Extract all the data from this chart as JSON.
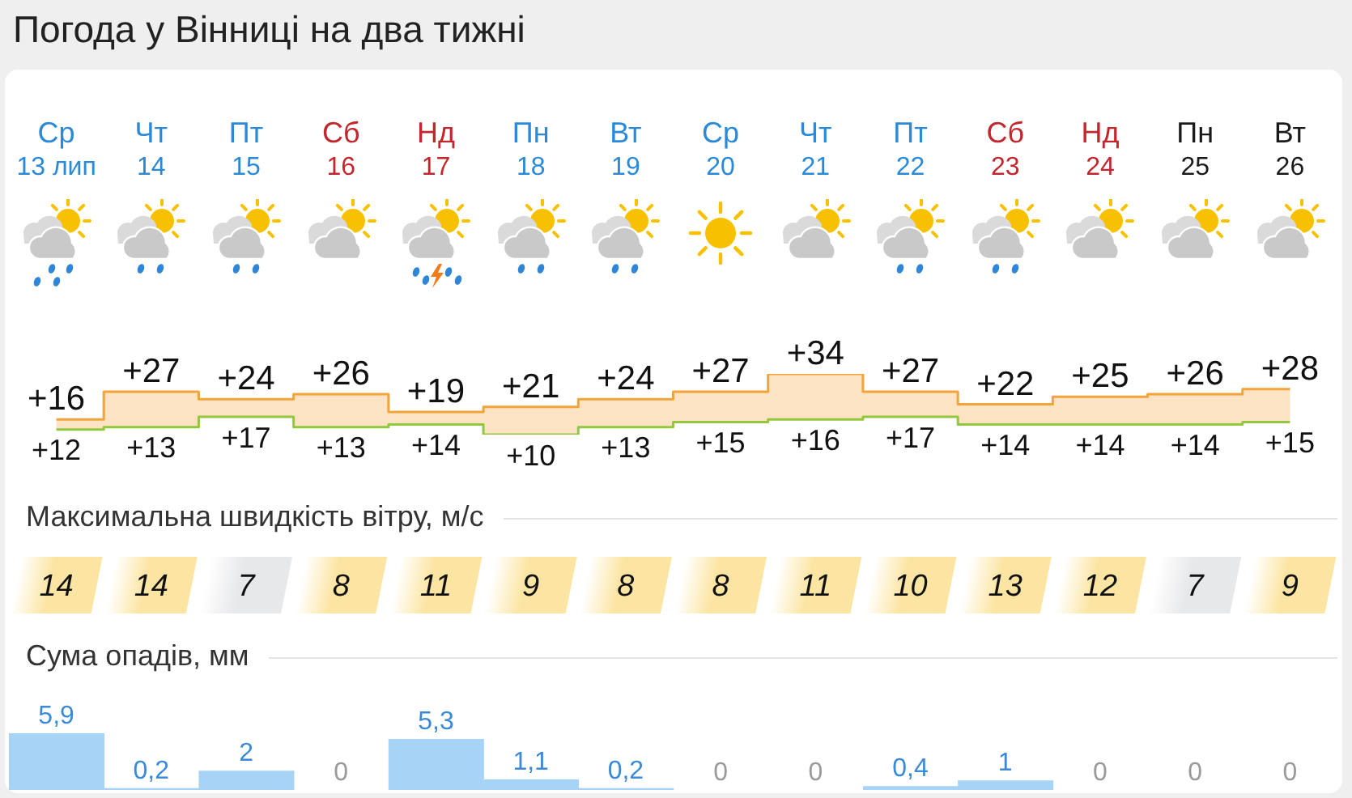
{
  "chart_data": [
    {
      "type": "step",
      "title": "Погода у Вінниці на два тижні",
      "categories": [
        "Ср\n13 лип",
        "Чт\n14",
        "Пт\n15",
        "Сб\n16",
        "Нд\n17",
        "Пн\n18",
        "Вт\n19",
        "Ср\n20",
        "Чт\n21",
        "Пт\n22",
        "Сб\n23",
        "Нд\n24",
        "Пн\n25",
        "Вт\n26"
      ],
      "series": [
        {
          "color": "#f2a33a",
          "values": [
            16,
            27,
            24,
            26,
            19,
            21,
            24,
            27,
            34,
            27,
            22,
            25,
            26,
            28
          ],
          "value_labels": [
            "+16",
            "+27",
            "+24",
            "+26",
            "+19",
            "+21",
            "+24",
            "+27",
            "+34",
            "+27",
            "+22",
            "+25",
            "+26",
            "+28"
          ],
          "lower": [
            12,
            13,
            17,
            13,
            14,
            10,
            13,
            15,
            16,
            17,
            14,
            14,
            14,
            15
          ],
          "upper": [
            16,
            27,
            24,
            26,
            19,
            21,
            24,
            27,
            34,
            27,
            22,
            25,
            26,
            28
          ]
        },
        {
          "color": "#93c83e",
          "values": [
            12,
            13,
            17,
            13,
            14,
            10,
            13,
            15,
            16,
            17,
            14,
            14,
            14,
            15
          ],
          "value_labels": [
            "+12",
            "+13",
            "+17",
            "+13",
            "+14",
            "+10",
            "+13",
            "+15",
            "+16",
            "+17",
            "+14",
            "+14",
            "+14",
            "+15"
          ]
        }
      ],
      "tick_labels": "x"
    },
    {
      "type": "heatmap",
      "title": "Максимальна швидкість вітру, м/с",
      "categories": [
        null,
        null,
        null,
        null,
        null,
        null,
        null,
        null,
        null,
        null,
        null,
        null,
        null,
        null
      ],
      "y_categories": [
        null
      ],
      "cells": [
        [
          14,
          14,
          7,
          8,
          11,
          9,
          8,
          8,
          11,
          10,
          13,
          12,
          7,
          9
        ]
      ],
      "colors": [
        "#fce5a3",
        "#fce5a3",
        "#e7e8ea",
        "#fce5a3",
        "#fce5a3",
        "#fce5a3",
        "#fce5a3",
        "#fce5a3",
        "#fce5a3",
        "#fce5a3",
        "#fce5a3",
        "#fce5a3",
        "#e7e8ea",
        "#fce5a3"
      ],
      "data_labels": true,
      "tick_labels": false
    },
    {
      "type": "bar",
      "title": "Сума опадів, мм",
      "categories": [
        null,
        null,
        null,
        null,
        null,
        null,
        null,
        null,
        null,
        null,
        null,
        null,
        null,
        null
      ],
      "values": [
        5.9,
        0.2,
        2,
        0,
        5.3,
        1.1,
        0.2,
        0,
        0,
        0.4,
        1,
        0,
        0,
        0
      ],
      "value_labels": [
        "5,9",
        "0,2",
        "2",
        "0",
        "5,3",
        "1,1",
        "0,2",
        "0",
        "0",
        "0,4",
        "1",
        "0",
        "0",
        "0"
      ],
      "color": "#a7d3f7",
      "tick_labels": false
    }
  ]
}
